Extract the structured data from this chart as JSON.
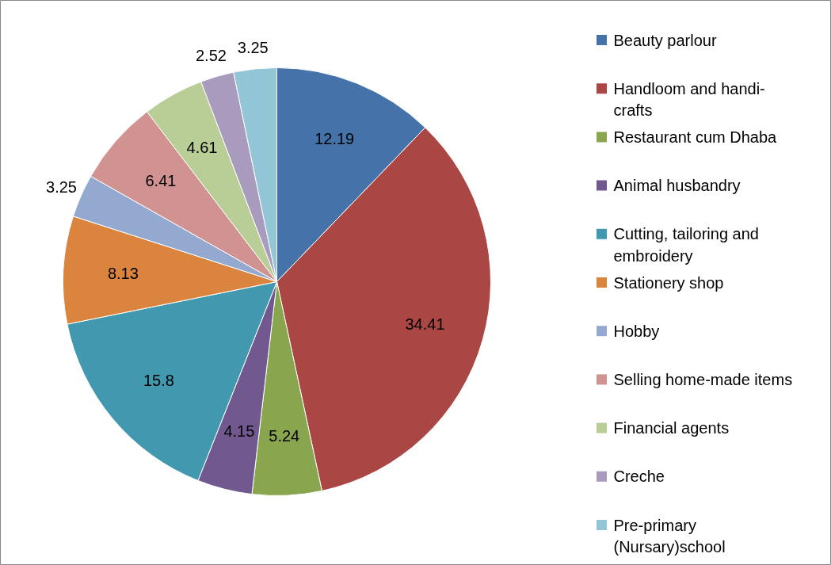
{
  "chart_data": {
    "type": "pie",
    "categories": [
      "Beauty parlour",
      "Handloom and handi-crafts",
      "Restaurant cum Dhaba",
      "Animal husbandry",
      "Cutting, tailoring and embroidery",
      "Stationery shop",
      "Hobby",
      "Selling home-made items",
      "Financial agents",
      "Creche",
      "Pre-primary (Nursary)school"
    ],
    "values": [
      12.19,
      34.41,
      5.24,
      4.15,
      15.8,
      8.13,
      3.25,
      6.41,
      4.61,
      2.52,
      3.25
    ],
    "colors": [
      "#4672aa",
      "#aa4644",
      "#89a54e",
      "#71588f",
      "#4198af",
      "#db843d",
      "#93a9cf",
      "#d19392",
      "#b9cd96",
      "#a99bbd",
      "#92c5d6"
    ],
    "data_labels": true,
    "legend": "right"
  }
}
